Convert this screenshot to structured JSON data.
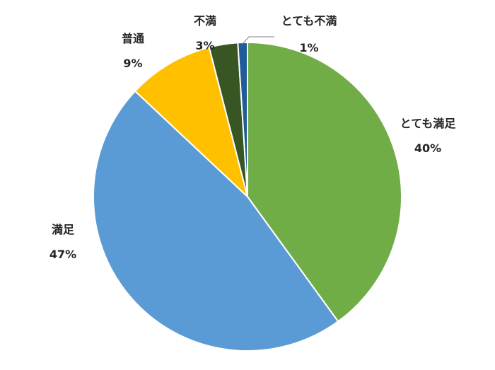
{
  "chart_data": {
    "type": "pie",
    "start_angle_deg": 0,
    "direction": "clockwise",
    "slices": [
      {
        "name": "とても満足",
        "value": 40,
        "label": "40%",
        "color": "#70ad47"
      },
      {
        "name": "満足",
        "value": 47,
        "label": "47%",
        "color": "#5b9bd5"
      },
      {
        "name": "普通",
        "value": 9,
        "label": "9%",
        "color": "#ffc000"
      },
      {
        "name": "不満",
        "value": 3,
        "label": "3%",
        "color": "#375623"
      },
      {
        "name": "とても不満",
        "value": 1,
        "label": "1%",
        "color": "#1f5c99"
      }
    ],
    "title": "",
    "legend": "none",
    "data_labels": "outside"
  }
}
